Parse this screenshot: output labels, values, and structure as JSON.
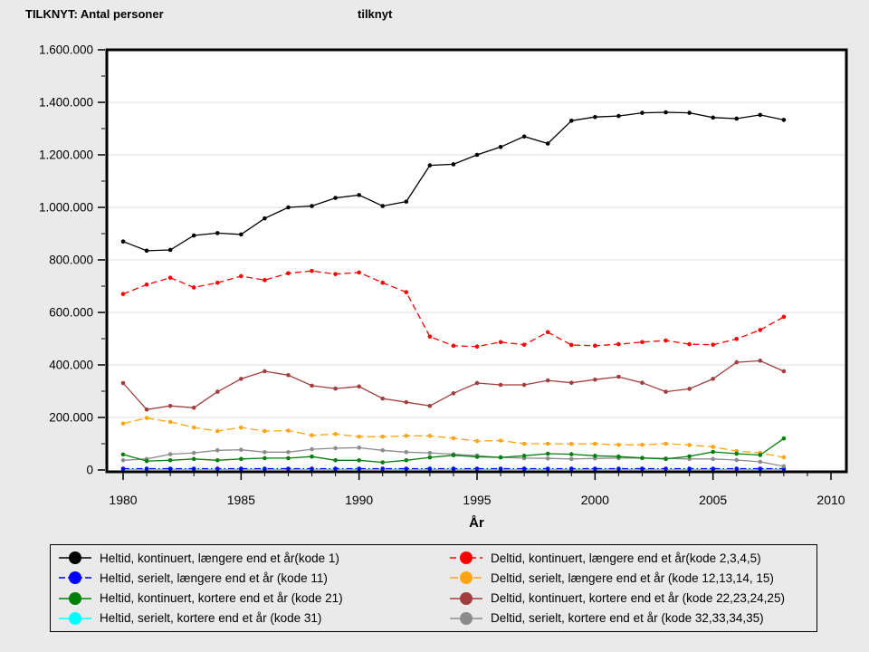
{
  "header": {
    "title": "TILKNYT: Antal personer",
    "subtitle": "tilknyt"
  },
  "colors": {
    "background": "#EAEAEA",
    "plot_background": "#FFFFFF",
    "gridline": "#DCDCDC",
    "axis": "#000000"
  },
  "chart_data": {
    "type": "line",
    "title": "TILKNYT: Antal personer",
    "title_right": "tilknyt",
    "xlabel": "År",
    "ylabel": "",
    "xlim": [
      1980,
      2010
    ],
    "ylim": [
      0,
      1600000
    ],
    "grid": "horizontal-major-only",
    "legend_position": "bottom-box-two-columns",
    "y_tick_labels": [
      "0",
      "200.000",
      "400.000",
      "600.000",
      "800.000",
      "1.000.000",
      "1.200.000",
      "1.400.000",
      "1.600.000"
    ],
    "y_minor_step": 100000,
    "y_major_step": 200000,
    "x_tick_labels": [
      "1980",
      "1985",
      "1990",
      "1995",
      "2000",
      "2005",
      "2010"
    ],
    "x_major_step": 5,
    "x_minor_step": 1,
    "x": [
      1980,
      1981,
      1982,
      1983,
      1984,
      1985,
      1986,
      1987,
      1988,
      1989,
      1990,
      1991,
      1992,
      1993,
      1994,
      1995,
      1996,
      1997,
      1998,
      1999,
      2000,
      2001,
      2002,
      2003,
      2004,
      2005,
      2006,
      2007,
      2008
    ],
    "series": [
      {
        "name": "Heltid, kontinuert, længere end et år(kode 1)",
        "color": "#000000",
        "dash": "solid",
        "values": [
          870000,
          835000,
          838000,
          893000,
          902000,
          897000,
          958000,
          1000000,
          1005000,
          1036000,
          1047000,
          1005000,
          1022000,
          1160000,
          1164000,
          1200000,
          1230000,
          1270000,
          1243000,
          1330000,
          1344000,
          1348000,
          1360000,
          1362000,
          1360000,
          1342000,
          1338000,
          1352000,
          1333000
        ]
      },
      {
        "name": "Heltid, serielt, længere end et år (kode 11)",
        "color": "#0000FF",
        "dash": "dashdot",
        "values": [
          5000,
          5000,
          5000,
          5000,
          5000,
          5000,
          5000,
          5000,
          5000,
          5000,
          5000,
          5000,
          5000,
          5000,
          5000,
          5000,
          5000,
          5000,
          5000,
          5000,
          5000,
          5000,
          5000,
          5000,
          5000,
          5000,
          5000,
          5000,
          5000
        ]
      },
      {
        "name": "Heltid, kontinuert, kortere end et år (kode 21)",
        "color": "#00800A",
        "dash": "solid",
        "values": [
          59000,
          34000,
          37000,
          42000,
          37000,
          42000,
          45000,
          45000,
          51000,
          37000,
          37000,
          29000,
          37000,
          48000,
          56000,
          50000,
          48000,
          54000,
          62000,
          60000,
          54000,
          51000,
          46000,
          42000,
          52000,
          69000,
          62000,
          57000,
          120000
        ]
      },
      {
        "name": "Heltid, serielt, kortere end et år (kode 31)",
        "color": "#00FFFF",
        "dash": "solid",
        "values": [
          2000,
          2000,
          2000,
          2000,
          2000,
          2000,
          2000,
          2000,
          2000,
          2000,
          2000,
          2000,
          2000,
          2000,
          2000,
          2000,
          2000,
          2000,
          2000,
          2000,
          2000,
          2000,
          2000,
          2000,
          2000,
          2000,
          2000,
          2000,
          2000
        ]
      },
      {
        "name": "Deltid, kontinuert, længere end et år(kode 2,3,4,5)",
        "color": "#FF0000",
        "dash": "dash",
        "values": [
          670000,
          706000,
          732000,
          695000,
          713000,
          738000,
          723000,
          749000,
          758000,
          746000,
          752000,
          713000,
          677000,
          508000,
          473000,
          470000,
          487000,
          477000,
          525000,
          476000,
          473000,
          479000,
          487000,
          493000,
          479000,
          477000,
          499000,
          533000,
          583000
        ]
      },
      {
        "name": "Deltid, serielt, længere end et år (kode 12,13,14, 15)",
        "color": "#FFA515",
        "dash": "longdash",
        "values": [
          177000,
          198000,
          183000,
          162000,
          148000,
          162000,
          148000,
          150000,
          132000,
          137000,
          127000,
          127000,
          130000,
          130000,
          121000,
          110000,
          112000,
          100000,
          100000,
          99000,
          100000,
          96000,
          96000,
          100000,
          95000,
          88000,
          72000,
          65000,
          48000
        ]
      },
      {
        "name": "Deltid, kontinuert, kortere end et år (kode 22,23,24,25)",
        "color": "#A33E3E",
        "dash": "solid",
        "values": [
          331000,
          230000,
          244000,
          237000,
          298000,
          347000,
          376000,
          361000,
          321000,
          310000,
          318000,
          272000,
          258000,
          244000,
          292000,
          331000,
          324000,
          324000,
          341000,
          332000,
          344000,
          355000,
          332000,
          298000,
          309000,
          347000,
          410000,
          416000,
          376000
        ]
      },
      {
        "name": "Deltid, serielt, kortere end et år (kode 32,33,34,35)",
        "color": "#8C8C8C",
        "dash": "solid",
        "values": [
          37000,
          42000,
          60000,
          65000,
          75000,
          77000,
          68000,
          68000,
          79000,
          83000,
          85000,
          75000,
          68000,
          65000,
          60000,
          55000,
          48000,
          45000,
          44000,
          42000,
          44000,
          45000,
          45000,
          44000,
          42000,
          42000,
          38000,
          31000,
          14000
        ]
      }
    ]
  }
}
